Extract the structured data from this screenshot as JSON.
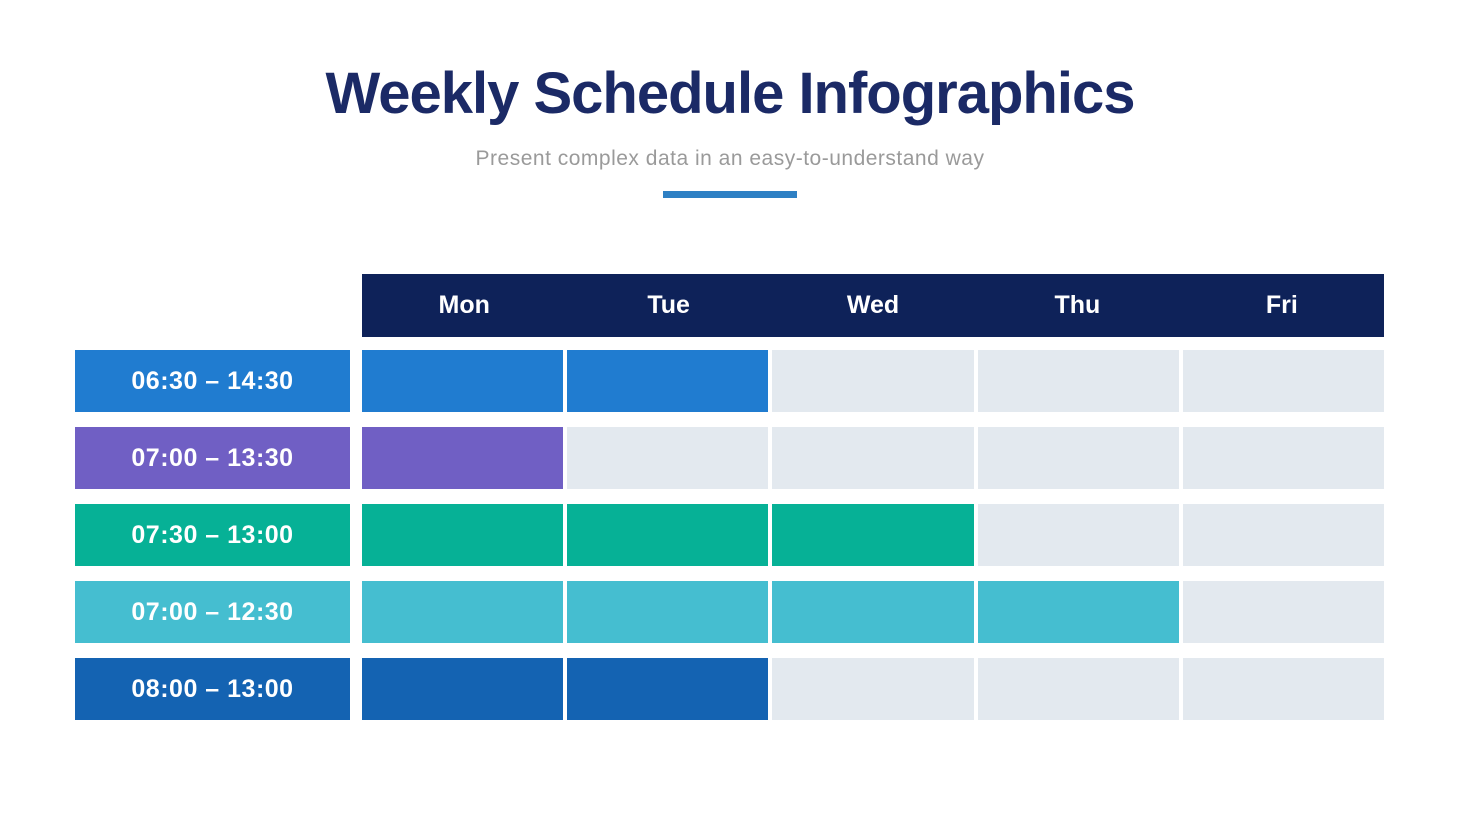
{
  "page": {
    "title": "Weekly Schedule Infographics",
    "subtitle": "Present complex data in an easy-to-understand way"
  },
  "colors": {
    "background": "#ffffff",
    "title_text": "#1b2a66",
    "subtitle_text": "#9a9a9a",
    "accent_underline": "#2e80c4",
    "header_bar": "#0e2259",
    "header_text": "#ffffff",
    "empty_cell": "#e3e9ef",
    "label_text": "#ffffff"
  },
  "schedule": {
    "days": [
      "Mon",
      "Tue",
      "Wed",
      "Thu",
      "Fri"
    ],
    "rows": [
      {
        "time": "06:30 – 14:30",
        "color": "#207CD0",
        "active_days": [
          "Mon",
          "Tue"
        ]
      },
      {
        "time": "07:00 – 13:30",
        "color": "#705FC4",
        "active_days": [
          "Mon"
        ]
      },
      {
        "time": "07:30 – 13:00",
        "color": "#06B196",
        "active_days": [
          "Mon",
          "Tue",
          "Wed"
        ]
      },
      {
        "time": "07:00 – 12:30",
        "color": "#45BED0",
        "active_days": [
          "Mon",
          "Tue",
          "Wed",
          "Thu"
        ]
      },
      {
        "time": "08:00 – 13:00",
        "color": "#1463B2",
        "active_days": [
          "Mon",
          "Tue"
        ]
      }
    ]
  },
  "chart_data": {
    "type": "table",
    "title": "Weekly Schedule Infographics",
    "subtitle": "Present complex data in an easy-to-understand way",
    "columns": [
      "Mon",
      "Tue",
      "Wed",
      "Thu",
      "Fri"
    ],
    "rows": [
      {
        "label": "06:30 – 14:30",
        "values": [
          1,
          1,
          0,
          0,
          0
        ]
      },
      {
        "label": "07:00 – 13:30",
        "values": [
          1,
          0,
          0,
          0,
          0
        ]
      },
      {
        "label": "07:30 – 13:00",
        "values": [
          1,
          1,
          1,
          0,
          0
        ]
      },
      {
        "label": "07:00 – 12:30",
        "values": [
          1,
          1,
          1,
          1,
          0
        ]
      },
      {
        "label": "08:00 – 13:00",
        "values": [
          1,
          1,
          0,
          0,
          0
        ]
      }
    ],
    "legend_position": "none",
    "grid": false
  }
}
